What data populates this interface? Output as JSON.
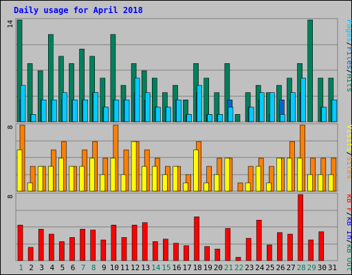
{
  "chart_data": {
    "type": "bar",
    "title": "Daily usage for April 2018",
    "categories": [
      "1",
      "2",
      "3",
      "4",
      "5",
      "6",
      "7",
      "8",
      "9",
      "10",
      "11",
      "12",
      "13",
      "14",
      "15",
      "16",
      "17",
      "18",
      "19",
      "20",
      "21",
      "22",
      "23",
      "24",
      "25",
      "26",
      "27",
      "28",
      "29",
      "30",
      "31"
    ],
    "weekend_days": [
      1,
      7,
      8,
      14,
      15,
      21,
      22,
      28,
      29
    ],
    "panels": [
      {
        "ymax": 14,
        "tick_label": "14",
        "legend": [
          "Pages",
          "/",
          "Files",
          "/",
          "Hits"
        ],
        "legend_colors": [
          "#00ccff",
          "#000000",
          "#0066cc",
          "#000000",
          "#00805c"
        ],
        "series": [
          {
            "name": "Hits",
            "color": "#00805c",
            "values": [
              14,
              8,
              7,
              12,
              9,
              8,
              10,
              9,
              6,
              12,
              5,
              8,
              7,
              6,
              4,
              5,
              3,
              8,
              6,
              4,
              8,
              1,
              4,
              5,
              4,
              5,
              6,
              8,
              14,
              6,
              6
            ]
          },
          {
            "name": "Files",
            "color": "#0066cc",
            "values": [
              3,
              1,
              3,
              3,
              3,
              3,
              3,
              4,
              2,
              3,
              3,
              4,
              3,
              2,
              2,
              3,
              1,
              4,
              1,
              1,
              3,
              0,
              2,
              3,
              1,
              3,
              3,
              4,
              0,
              2,
              3
            ]
          },
          {
            "name": "Pages",
            "color": "#00ccff",
            "values": [
              5,
              1,
              3,
              3,
              4,
              3,
              3,
              4,
              2,
              3,
              3,
              6,
              4,
              2,
              2,
              3,
              1,
              5,
              1,
              1,
              2,
              0,
              2,
              4,
              4,
              1,
              4,
              6,
              0,
              2,
              3
            ]
          }
        ]
      },
      {
        "ymax": 8,
        "tick_label": "8",
        "legend": [
          "Visits",
          "/",
          "Sites"
        ],
        "legend_colors": [
          "#ffff00",
          "#000000",
          "#ff8000"
        ],
        "series": [
          {
            "name": "Sites",
            "color": "#ff8000",
            "values": [
              8,
              3,
              3,
              5,
              6,
              3,
              5,
              6,
              4,
              8,
              5,
              6,
              5,
              4,
              3,
              3,
              2,
              6,
              3,
              4,
              4,
              1,
              3,
              4,
              3,
              4,
              6,
              8,
              4,
              4,
              4
            ]
          },
          {
            "name": "Visits",
            "color": "#ffff00",
            "values": [
              5,
              1,
              3,
              3,
              4,
              3,
              3,
              4,
              2,
              4,
              2,
              6,
              3,
              3,
              2,
              3,
              1,
              5,
              1,
              2,
              4,
              0,
              1,
              3,
              1,
              4,
              4,
              4,
              2,
              2,
              2
            ]
          }
        ]
      },
      {
        "ymax": 8,
        "tick_label": "8",
        "legend": [
          "kB F",
          "/",
          "kB In",
          "/",
          "kB Out"
        ],
        "legend_colors": [
          "#ff0000",
          "#000000",
          "#0000ff",
          "#000000",
          "#00805c"
        ],
        "series": [
          {
            "name": "kB F",
            "color": "#ff0000",
            "values": [
              4.3,
              1.6,
              3.8,
              3.2,
              2.3,
              2.8,
              3.8,
              3.7,
              2.5,
              4.3,
              2.8,
              4.3,
              4.6,
              2.3,
              2.6,
              2.1,
              1.8,
              5.3,
              1.7,
              1.4,
              3.9,
              0.4,
              2.7,
              4.9,
              1.9,
              3.4,
              3.2,
              8.0,
              2.5,
              3.5,
              0
            ]
          }
        ]
      }
    ]
  }
}
